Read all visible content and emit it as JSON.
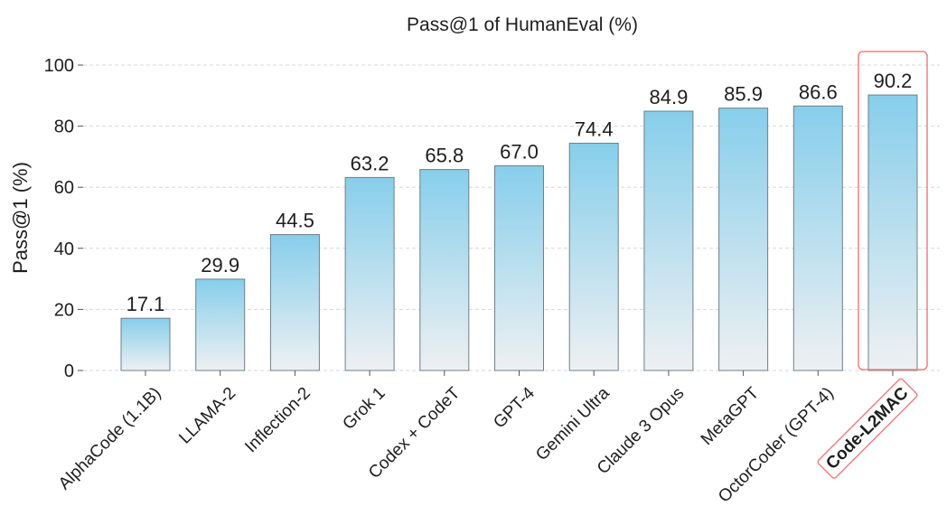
{
  "chart_data": {
    "type": "bar",
    "title": "Pass@1 of HumanEval (%)",
    "xlabel": "",
    "ylabel": "Pass@1 (%)",
    "ylim": [
      0,
      100
    ],
    "yticks": [
      "0",
      "20",
      "40",
      "60",
      "80",
      "100"
    ],
    "grid": true,
    "categories": [
      "AlphaCode (1.1B)",
      "LLAMA-2",
      "Inflection-2",
      "Grok 1",
      "Codex + CodeT",
      "GPT-4",
      "Gemini Ultra",
      "Claude 3 Opus",
      "MetaGPT",
      "OctorCoder (GPT-4)",
      "Code-L2MAC"
    ],
    "values": [
      17.1,
      29.9,
      44.5,
      63.2,
      65.8,
      67.0,
      74.4,
      84.9,
      85.9,
      86.6,
      90.2
    ],
    "value_labels": [
      "17.1",
      "29.9",
      "44.5",
      "63.2",
      "65.8",
      "67.0",
      "74.4",
      "84.9",
      "85.9",
      "86.6",
      "90.2"
    ],
    "highlight": "Code-L2MAC",
    "colors": {
      "bar_top": "#87ceeb",
      "bar_bottom": "#eef0f2",
      "bar_edge": "#6f7f88",
      "highlight_box": "#f08080",
      "grid": "#d8d8d8"
    }
  }
}
